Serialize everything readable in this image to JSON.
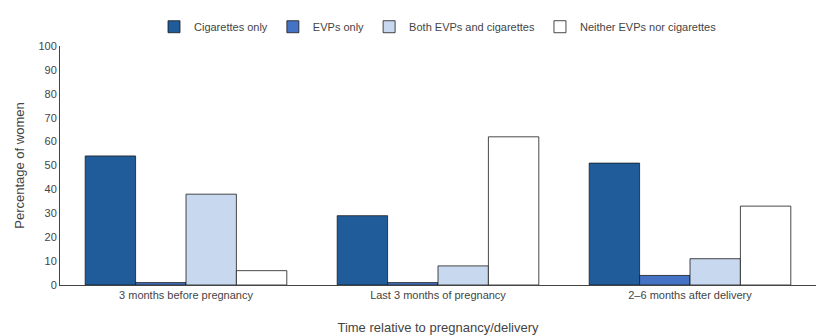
{
  "chart_data": {
    "type": "bar",
    "categories": [
      "3 months before pregnancy",
      "Last 3 months of pregnancy",
      "2–6 months after delivery"
    ],
    "series": [
      {
        "name": "Cigarettes only",
        "color": "#1F5C99",
        "values": [
          54,
          29,
          51
        ]
      },
      {
        "name": "EVPs only",
        "color": "#4472C4",
        "values": [
          1,
          1,
          4
        ]
      },
      {
        "name": "Both EVPs and cigarettes",
        "color": "#C8D8EE",
        "values": [
          38,
          8,
          11
        ]
      },
      {
        "name": "Neither EVPs nor cigarettes",
        "color": "#FFFFFF",
        "values": [
          6,
          62,
          33
        ]
      }
    ],
    "xlabel": "Time relative to pregnancy/delivery",
    "ylabel": "Percentage of women",
    "ylim": [
      0,
      100
    ],
    "yticks": [
      0,
      10,
      20,
      30,
      40,
      50,
      60,
      70,
      80,
      90,
      100
    ],
    "grid": false,
    "legend": "top"
  }
}
